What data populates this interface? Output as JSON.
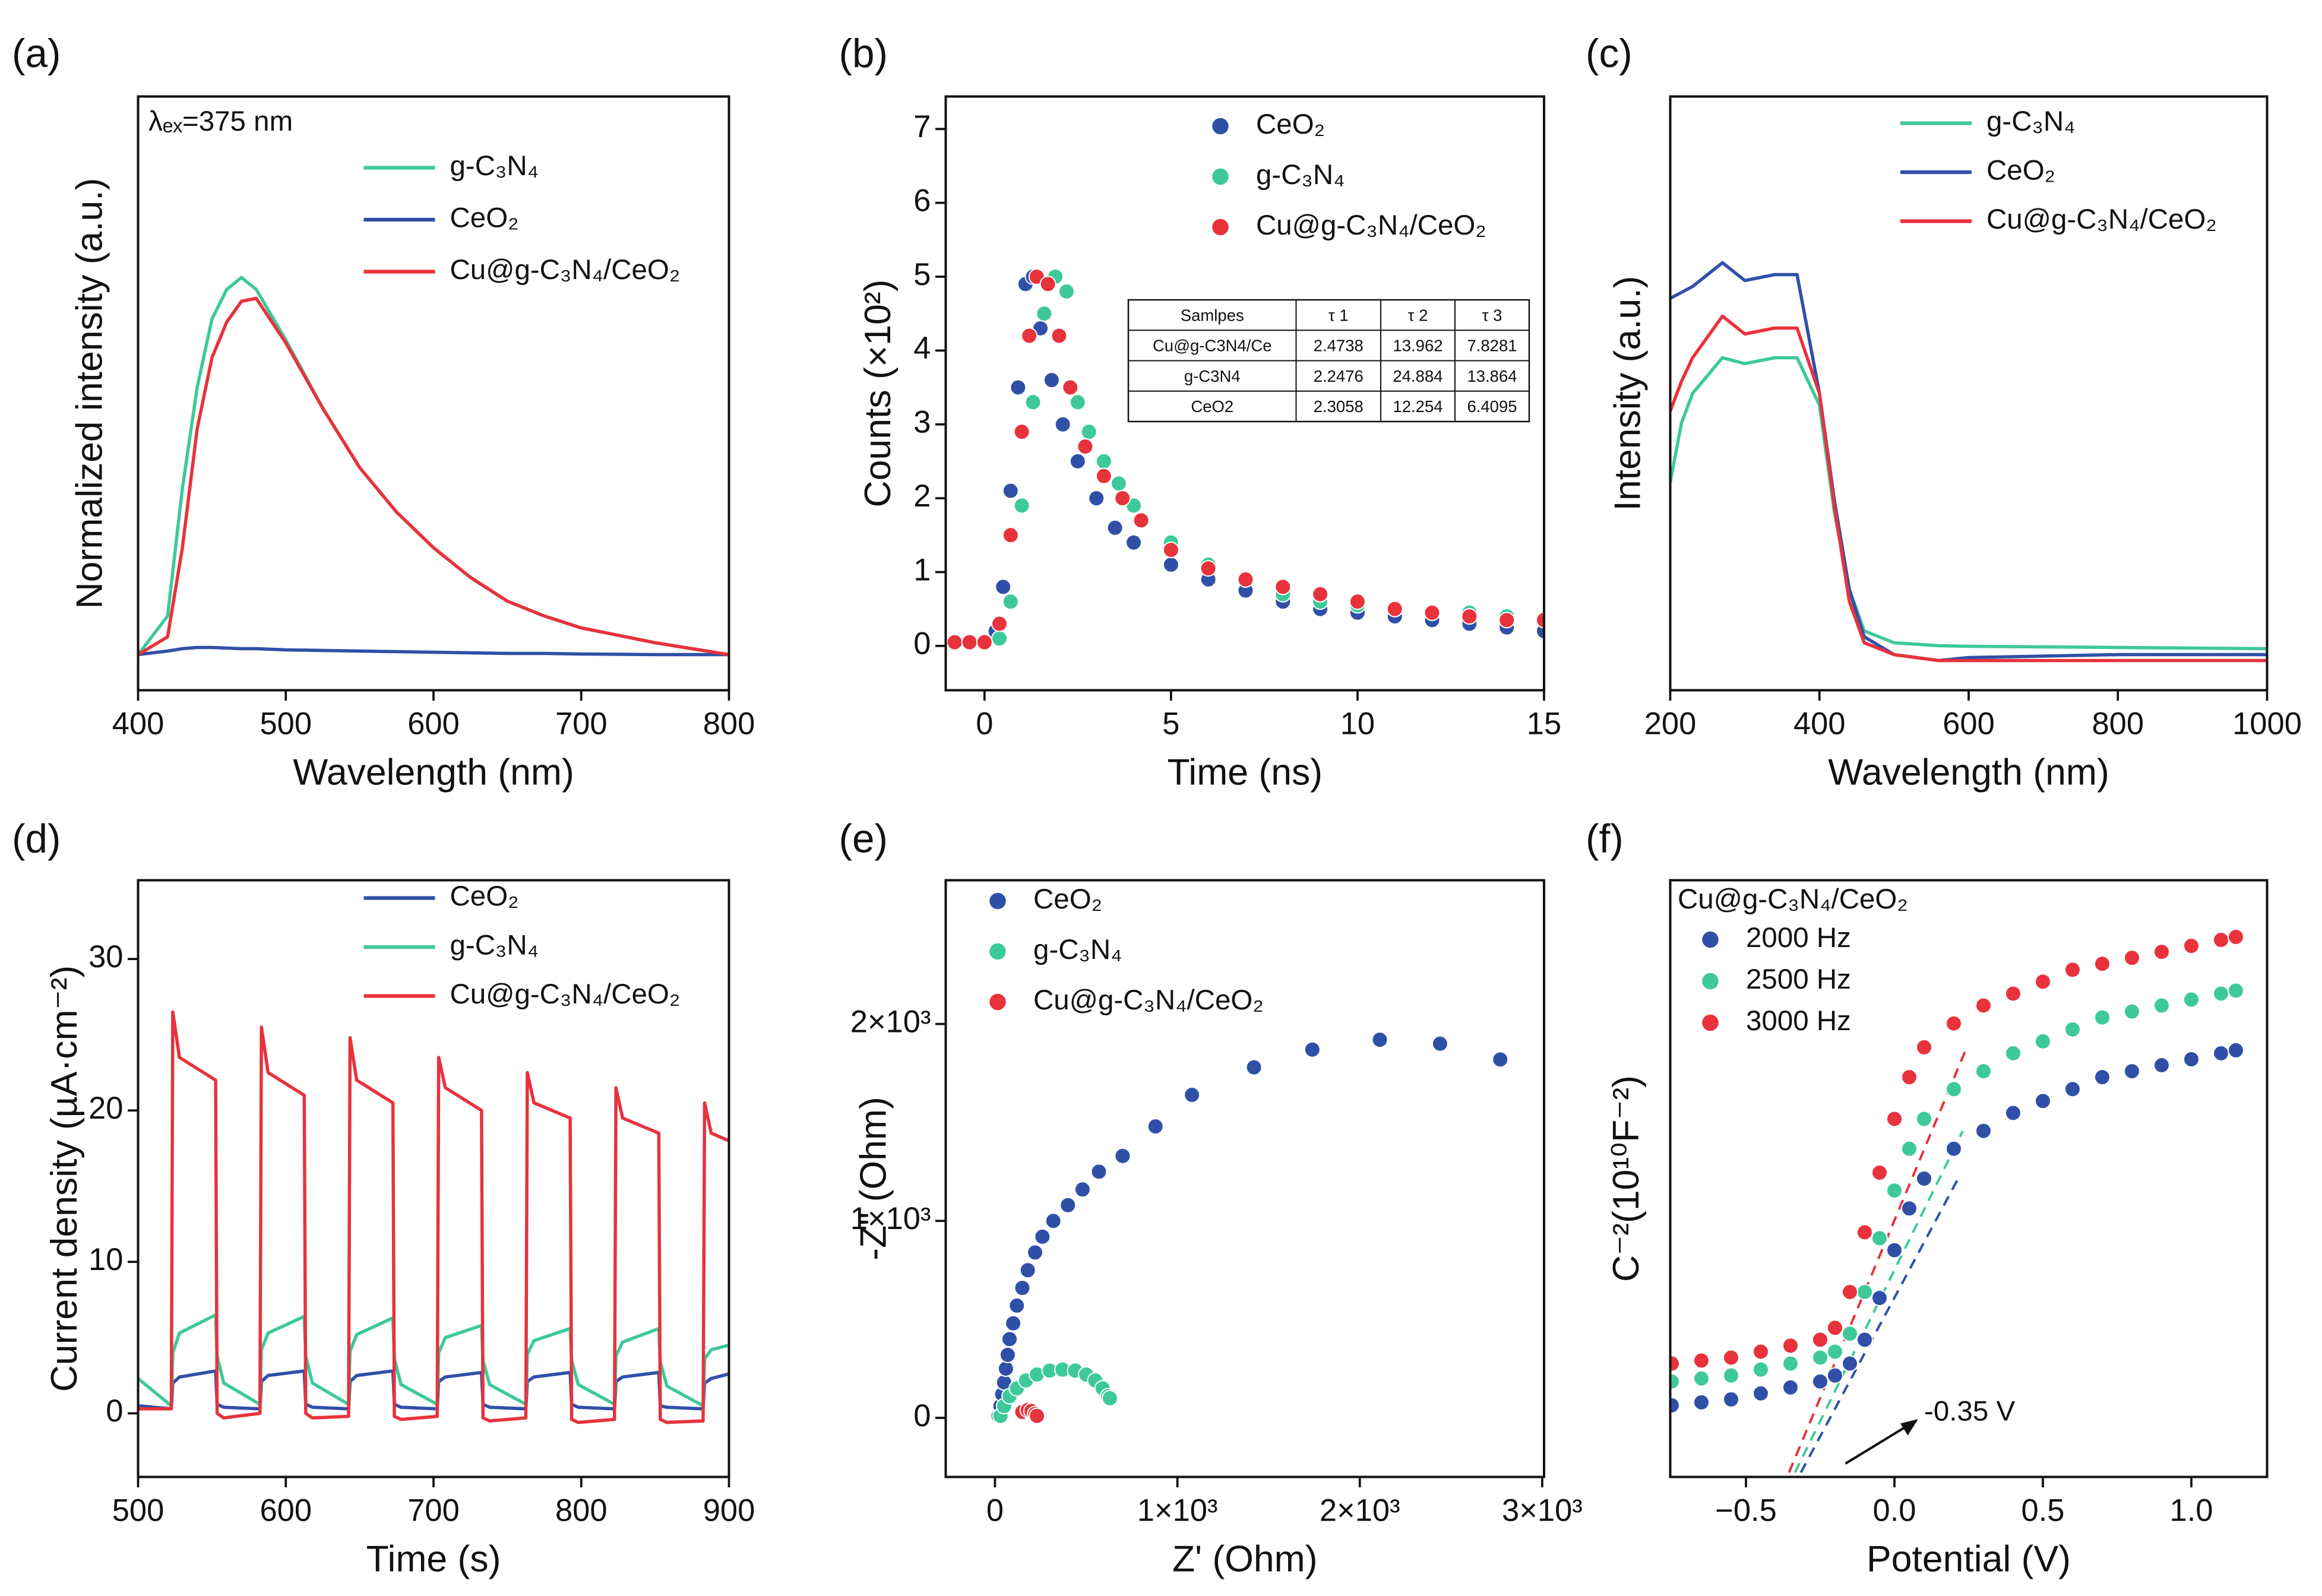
{
  "chart_data": [
    {
      "type": "line",
      "label": "(a)",
      "annotation": "λₑₓ=375 nm",
      "xlabel": "Wavelength (nm)",
      "ylabel": "Normalized intensity (a.u.)",
      "xlim": [
        400,
        800
      ],
      "xticks": [
        400,
        500,
        600,
        700,
        800
      ],
      "ylim": [
        0,
        1
      ],
      "x": [
        400,
        420,
        430,
        440,
        450,
        460,
        470,
        480,
        500,
        525,
        550,
        575,
        600,
        625,
        650,
        675,
        700,
        750,
        800
      ],
      "series": [
        {
          "name": "g-C₃N₄",
          "color": "#3ec99a",
          "values": [
            0.06,
            0.125,
            0.34,
            0.51,
            0.625,
            0.675,
            0.695,
            0.675,
            0.59,
            0.475,
            0.375,
            0.3,
            0.24,
            0.19,
            0.15,
            0.125,
            0.105,
            0.08,
            0.06
          ]
        },
        {
          "name": "CeO₂",
          "color": "#3050a8",
          "values": [
            0.06,
            0.066,
            0.07,
            0.072,
            0.072,
            0.071,
            0.07,
            0.07,
            0.068,
            0.067,
            0.066,
            0.065,
            0.064,
            0.063,
            0.062,
            0.062,
            0.061,
            0.06,
            0.06
          ]
        },
        {
          "name": "Cu@g-C₃N₄/CeO₂",
          "color": "#e8323c",
          "values": [
            0.06,
            0.09,
            0.24,
            0.44,
            0.56,
            0.62,
            0.655,
            0.66,
            0.585,
            0.475,
            0.375,
            0.3,
            0.24,
            0.19,
            0.15,
            0.125,
            0.105,
            0.08,
            0.06
          ]
        }
      ]
    },
    {
      "type": "scatter",
      "label": "(b)",
      "xlabel": "Time (ns)",
      "ylabel": "Counts (×10²)",
      "xlim": [
        -1.04,
        15
      ],
      "xticks": [
        0,
        5,
        10,
        15
      ],
      "ylim": [
        -0.6,
        7.44
      ],
      "yticks": [
        0,
        1,
        2,
        3,
        4,
        5,
        6,
        7
      ],
      "series": [
        {
          "name": "CeO₂",
          "color": "#3050a8",
          "x": [
            -0.8,
            -0.4,
            0,
            0.3,
            0.5,
            0.7,
            0.9,
            1.1,
            1.3,
            1.5,
            1.8,
            2.1,
            2.5,
            3,
            3.5,
            4,
            5,
            6,
            7,
            8,
            9,
            10,
            11,
            12,
            13,
            14,
            15
          ],
          "values": [
            0.05,
            0.05,
            0.05,
            0.2,
            0.8,
            2.1,
            3.5,
            4.9,
            5.0,
            4.3,
            3.6,
            3.0,
            2.5,
            2.0,
            1.6,
            1.4,
            1.1,
            0.9,
            0.75,
            0.6,
            0.5,
            0.45,
            0.4,
            0.35,
            0.3,
            0.25,
            0.2
          ]
        },
        {
          "name": "g-C₃N₄",
          "color": "#3ec99a",
          "x": [
            -0.8,
            -0.4,
            0,
            0.4,
            0.7,
            1.0,
            1.3,
            1.6,
            1.9,
            2.2,
            2.5,
            2.8,
            3.2,
            3.6,
            4,
            5,
            6,
            7,
            8,
            9,
            10,
            11,
            12,
            13,
            14,
            15
          ],
          "values": [
            0.05,
            0.05,
            0.05,
            0.1,
            0.6,
            1.9,
            3.3,
            4.5,
            5.0,
            4.8,
            3.3,
            2.9,
            2.5,
            2.2,
            1.9,
            1.4,
            1.1,
            0.9,
            0.7,
            0.6,
            0.55,
            0.5,
            0.45,
            0.45,
            0.4,
            0.35
          ]
        },
        {
          "name": "Cu@g-C₃N₄/CeO₂",
          "color": "#e8323c",
          "x": [
            -0.8,
            -0.4,
            0,
            0.4,
            0.7,
            1.0,
            1.2,
            1.4,
            1.7,
            2.0,
            2.3,
            2.7,
            3.2,
            3.7,
            4.2,
            5,
            6,
            7,
            8,
            9,
            10,
            11,
            12,
            13,
            14,
            15
          ],
          "values": [
            0.05,
            0.05,
            0.05,
            0.3,
            1.5,
            2.9,
            4.2,
            5.0,
            4.9,
            4.2,
            3.5,
            2.7,
            2.3,
            2.0,
            1.7,
            1.3,
            1.05,
            0.9,
            0.8,
            0.7,
            0.6,
            0.5,
            0.45,
            0.4,
            0.35,
            0.35
          ]
        }
      ],
      "table": {
        "header": [
          "Samlpes",
          "τ 1",
          "τ 2",
          "τ 3"
        ],
        "rows": [
          [
            "Cu@g-C3N4/Ce",
            2.4738,
            13.962,
            7.8281
          ],
          [
            "g-C3N4",
            2.2476,
            24.884,
            13.864
          ],
          [
            "CeO2",
            2.3058,
            12.254,
            6.4095
          ]
        ]
      }
    },
    {
      "type": "line",
      "label": "(c)",
      "xlabel": "Wavelength (nm)",
      "ylabel": "Intensity (a.u.)",
      "xlim": [
        200,
        1000
      ],
      "xticks": [
        200,
        400,
        600,
        800,
        1000
      ],
      "ylim": [
        0,
        1
      ],
      "x": [
        200,
        215,
        230,
        270,
        300,
        340,
        370,
        400,
        420,
        440,
        460,
        500,
        560,
        600,
        800,
        1000
      ],
      "series": [
        {
          "name": "g-C₃N₄",
          "color": "#3ec99a",
          "values": [
            0.35,
            0.45,
            0.5,
            0.56,
            0.55,
            0.56,
            0.56,
            0.48,
            0.3,
            0.17,
            0.1,
            0.08,
            0.075,
            0.074,
            0.072,
            0.07
          ]
        },
        {
          "name": "CeO₂",
          "color": "#3050a8",
          "values": [
            0.66,
            0.67,
            0.68,
            0.72,
            0.69,
            0.7,
            0.7,
            0.5,
            0.32,
            0.17,
            0.09,
            0.06,
            0.05,
            0.055,
            0.06,
            0.06
          ]
        },
        {
          "name": "Cu@g-C₃N₄/CeO₂",
          "color": "#e8323c",
          "values": [
            0.47,
            0.52,
            0.56,
            0.63,
            0.6,
            0.61,
            0.61,
            0.5,
            0.31,
            0.15,
            0.08,
            0.06,
            0.05,
            0.05,
            0.05,
            0.05
          ]
        }
      ]
    },
    {
      "type": "line",
      "label": "(d)",
      "xlabel": "Time (s)",
      "ylabel": "Current density (µA·cm⁻²)",
      "xlim": [
        500,
        900
      ],
      "xticks": [
        500,
        600,
        700,
        800,
        900
      ],
      "ylim": [
        -4.2,
        35.2
      ],
      "yticks": [
        0,
        10,
        20,
        30
      ],
      "x": [
        500,
        522.5,
        523.5,
        528,
        552.5,
        553.5,
        558,
        582.5,
        583.5,
        588,
        612.5,
        613.5,
        618,
        642.5,
        643.5,
        648,
        672.5,
        673.5,
        678,
        702.5,
        703.5,
        708,
        732.5,
        733.5,
        738,
        762.5,
        763.5,
        768,
        792.5,
        793.5,
        798,
        822.5,
        823.5,
        828,
        852.5,
        853.5,
        858,
        882.5,
        883.5,
        888,
        900
      ],
      "series": [
        {
          "name": "CeO₂",
          "color": "#3050a8",
          "values": [
            0.5,
            0.3,
            2,
            2.4,
            2.8,
            0.6,
            0.4,
            0.3,
            2.1,
            2.5,
            2.8,
            0.6,
            0.4,
            0.3,
            2.1,
            2.5,
            2.8,
            0.6,
            0.4,
            0.3,
            2.1,
            2.4,
            2.7,
            0.6,
            0.4,
            0.3,
            2.1,
            2.4,
            2.7,
            0.6,
            0.4,
            0.3,
            2.1,
            2.4,
            2.7,
            0.5,
            0.4,
            0.3,
            2,
            2.3,
            2.6
          ]
        },
        {
          "name": "g-C₃N₄",
          "color": "#3ec99a",
          "values": [
            2.3,
            0.5,
            4,
            5.3,
            6.5,
            3.8,
            2.0,
            0.6,
            4.2,
            5.3,
            6.4,
            3.8,
            2.0,
            0.6,
            4.1,
            5.2,
            6.3,
            3.6,
            1.9,
            0.6,
            4,
            5,
            5.8,
            3.5,
            1.9,
            0.6,
            3.9,
            4.8,
            5.6,
            3.5,
            1.9,
            0.6,
            3.8,
            4.7,
            5.6,
            3.4,
            1.8,
            0.5,
            3.6,
            4.2,
            4.5
          ]
        },
        {
          "name": "Cu@g-C₃N₄/CeO₂",
          "color": "#e8323c",
          "values": [
            0.3,
            0.3,
            26.5,
            23.5,
            22,
            0,
            -0.3,
            0,
            25.5,
            22.5,
            21,
            0,
            -0.3,
            -0.2,
            24.8,
            22,
            20.5,
            -0.2,
            -0.4,
            -0.2,
            23.5,
            21.5,
            20,
            -0.3,
            -0.5,
            -0.3,
            22.5,
            20.5,
            19.5,
            -0.4,
            -0.6,
            -0.4,
            21.5,
            19.5,
            18.5,
            -0.4,
            -0.6,
            -0.5,
            20.5,
            18.5,
            18
          ]
        }
      ]
    },
    {
      "type": "scatter",
      "label": "(e)",
      "xlabel": "Z' (Ohm)",
      "ylabel": "-Z\" (Ohm)",
      "xlim": [
        -270,
        3010
      ],
      "xticks": [
        0,
        {
          "value": 1000,
          "label": "1×10³"
        },
        {
          "value": 2000,
          "label": "2×10³"
        },
        {
          "value": 3000,
          "label": "3×10³"
        }
      ],
      "ylim": [
        -300,
        2730
      ],
      "yticks": [
        0,
        {
          "value": 1000,
          "label": "1×10³"
        },
        {
          "value": 2000,
          "label": "2×10³"
        }
      ],
      "series": [
        {
          "name": "CeO₂",
          "color": "#3050a8",
          "x": [
            20,
            30,
            40,
            50,
            60,
            70,
            80,
            100,
            120,
            150,
            180,
            220,
            260,
            320,
            400,
            480,
            570,
            700,
            880,
            1080,
            1420,
            1740,
            2110,
            2440,
            2770
          ],
          "values": [
            10,
            60,
            120,
            180,
            250,
            320,
            400,
            480,
            570,
            660,
            750,
            840,
            920,
            1000,
            1080,
            1160,
            1250,
            1330,
            1480,
            1640,
            1780,
            1870,
            1920,
            1900,
            1820
          ]
        },
        {
          "name": "g-C₃N₄",
          "color": "#3ec99a",
          "x": [
            30,
            50,
            80,
            120,
            170,
            230,
            300,
            370,
            440,
            500,
            550,
            590,
            620,
            630
          ],
          "values": [
            10,
            60,
            110,
            150,
            190,
            220,
            240,
            245,
            240,
            220,
            190,
            150,
            110,
            100
          ]
        },
        {
          "name": "Cu@g-C₃N₄/CeO₂",
          "color": "#e8323c",
          "x": [
            150,
            180,
            200,
            220,
            230
          ],
          "values": [
            30,
            40,
            35,
            20,
            10
          ]
        }
      ]
    },
    {
      "type": "scatter",
      "label": "(f)",
      "legend_title": "Cu@g-C₃N₄/CeO₂",
      "annotation": "-0.35 V",
      "xlabel": "Potential (V)",
      "ylabel": "C⁻²(10¹⁰F⁻²)",
      "xlim": [
        -0.755,
        1.255
      ],
      "xticks": [
        {
          "value": -0.5,
          "label": "−0.5"
        },
        {
          "value": 0,
          "label": "0.0"
        },
        0.5,
        {
          "value": 1,
          "label": "1.0"
        }
      ],
      "ylim": [
        0,
        1
      ],
      "x": [
        -0.75,
        -0.65,
        -0.55,
        -0.45,
        -0.35,
        -0.25,
        -0.2,
        -0.15,
        -0.1,
        -0.05,
        0,
        0.05,
        0.1,
        0.2,
        0.3,
        0.4,
        0.5,
        0.6,
        0.7,
        0.8,
        0.9,
        1.0,
        1.1,
        1.15
      ],
      "series": [
        {
          "name": "2000 Hz",
          "color": "#3050a8",
          "values": [
            0.12,
            0.125,
            0.13,
            0.14,
            0.15,
            0.16,
            0.17,
            0.19,
            0.23,
            0.3,
            0.38,
            0.45,
            0.5,
            0.55,
            0.58,
            0.61,
            0.63,
            0.65,
            0.67,
            0.68,
            0.69,
            0.7,
            0.71,
            0.715
          ]
        },
        {
          "name": "2500 Hz",
          "color": "#3ec99a",
          "values": [
            0.16,
            0.165,
            0.17,
            0.18,
            0.19,
            0.2,
            0.21,
            0.24,
            0.31,
            0.4,
            0.48,
            0.55,
            0.6,
            0.65,
            0.68,
            0.71,
            0.73,
            0.75,
            0.77,
            0.78,
            0.79,
            0.8,
            0.81,
            0.815
          ]
        },
        {
          "name": "3000 Hz",
          "color": "#e8323c",
          "values": [
            0.19,
            0.195,
            0.2,
            0.21,
            0.22,
            0.23,
            0.25,
            0.31,
            0.41,
            0.51,
            0.6,
            0.67,
            0.72,
            0.76,
            0.79,
            0.81,
            0.83,
            0.85,
            0.86,
            0.87,
            0.88,
            0.89,
            0.9,
            0.905
          ]
        }
      ]
    }
  ]
}
